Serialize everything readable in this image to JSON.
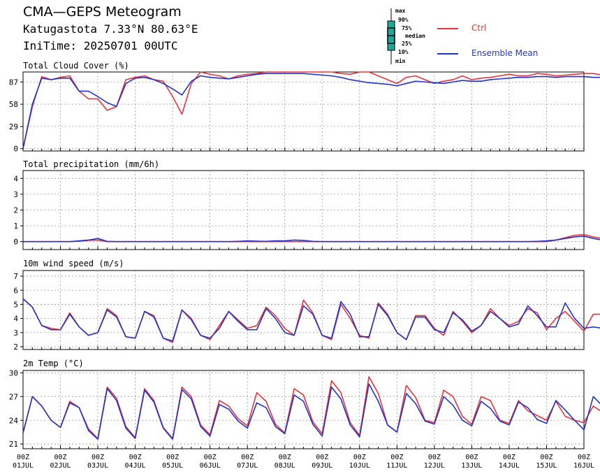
{
  "header": {
    "title": "CMA—GEPS Meteogram",
    "location": "Katugastota 7.33°N 80.63°E",
    "init_time": "IniTime: 20250701 00UTC"
  },
  "legend": {
    "box_key": [
      "max",
      "90%",
      "75%",
      "median",
      "25%",
      "10%",
      "min"
    ],
    "ctrl_label": "Ctrl",
    "mean_label": "Ensemble Mean",
    "colors": {
      "ctrl": "#e8353a",
      "mean": "#2233cc",
      "box": "#1fa89a"
    }
  },
  "x_axis": {
    "hours": [
      "00Z",
      "00Z",
      "00Z",
      "00Z",
      "00Z",
      "00Z",
      "00Z",
      "00Z",
      "00Z",
      "00Z",
      "00Z",
      "00Z",
      "00Z",
      "00Z",
      "00Z",
      "00Z"
    ],
    "dates": [
      "01JUL",
      "02JUL",
      "03JUL",
      "04JUL",
      "05JUL",
      "06JUL",
      "07JUL",
      "08JUL",
      "09JUL",
      "10JUL",
      "11JUL",
      "12JUL",
      "13JUL",
      "14JUL",
      "15JUL",
      "16JUL"
    ]
  },
  "chart_data": [
    {
      "type": "line",
      "title": "Total Cloud Cover (%)",
      "ylim": [
        -3,
        100
      ],
      "yticks": [
        "0",
        "29",
        "58",
        "87"
      ],
      "grid": true,
      "x_step_hours": 6,
      "series": [
        {
          "name": "Ctrl",
          "values": [
            0,
            55,
            94,
            90,
            93,
            95,
            75,
            65,
            65,
            50,
            55,
            90,
            93,
            95,
            90,
            88,
            68,
            45,
            85,
            100,
            97,
            95,
            91,
            95,
            97,
            98,
            100,
            100,
            100,
            100,
            100,
            100,
            100,
            100,
            98,
            97,
            100,
            100,
            95,
            90,
            85,
            93,
            95,
            90,
            85,
            88,
            90,
            95,
            90,
            92,
            93,
            95,
            97,
            95,
            95,
            98,
            97,
            95,
            96,
            97,
            98,
            98,
            96,
            95,
            95,
            93
          ]
        },
        {
          "name": "Ensemble Mean",
          "values": [
            0,
            58,
            92,
            90,
            92,
            92,
            75,
            75,
            68,
            60,
            55,
            85,
            92,
            93,
            90,
            85,
            78,
            70,
            88,
            95,
            93,
            92,
            91,
            93,
            95,
            97,
            98,
            98,
            98,
            98,
            98,
            97,
            96,
            95,
            93,
            90,
            88,
            86,
            85,
            84,
            82,
            85,
            88,
            87,
            86,
            85,
            87,
            89,
            88,
            88,
            90,
            91,
            92,
            93,
            93,
            94,
            94,
            93,
            94,
            94,
            94,
            93,
            93,
            94,
            94,
            92
          ]
        }
      ]
    },
    {
      "type": "line",
      "title": "Total precipitation (mm/6h)",
      "ylim": [
        -0.5,
        4.5
      ],
      "yticks": [
        "0",
        "1",
        "2",
        "3",
        "4"
      ],
      "grid": true,
      "x_step_hours": 6,
      "series": [
        {
          "name": "Ctrl",
          "values": [
            0,
            0,
            0,
            0,
            0,
            0,
            0.02,
            0.08,
            0.1,
            0,
            0,
            0,
            0,
            0,
            0,
            0,
            0,
            0,
            0,
            0,
            0,
            0,
            0,
            0,
            0,
            0,
            0,
            0,
            0,
            0,
            0,
            0,
            0,
            0,
            0,
            0,
            0,
            0,
            0,
            0,
            0,
            0,
            0,
            0,
            0,
            0,
            0,
            0,
            0,
            0,
            0,
            0,
            0,
            0,
            0,
            0,
            0,
            0.1,
            0.25,
            0.4,
            0.45,
            0.3,
            0.2,
            0.1,
            0.05,
            0.02,
            0,
            0,
            0,
            0,
            0,
            0,
            0,
            0,
            0.1,
            0.05,
            0,
            0,
            0,
            0,
            0
          ]
        },
        {
          "name": "Ensemble Mean",
          "values": [
            0,
            0,
            0,
            0,
            0,
            0,
            0.05,
            0.1,
            0.2,
            0.02,
            0,
            0,
            0,
            0,
            0,
            0,
            0,
            0,
            0,
            0,
            0,
            0,
            0,
            0.02,
            0.05,
            0.03,
            0.02,
            0.05,
            0.05,
            0.1,
            0.08,
            0.02,
            0,
            0,
            0,
            0,
            0,
            0,
            0,
            0,
            0,
            0,
            0,
            0,
            0,
            0,
            0,
            0,
            0,
            0,
            0,
            0,
            0,
            0,
            0,
            0.02,
            0.05,
            0.1,
            0.2,
            0.3,
            0.35,
            0.2,
            0.1,
            0.15,
            0.2,
            0.25,
            0.2,
            0.15,
            0.2,
            0.2,
            0.25,
            0.25,
            0.3,
            0.3,
            0.2,
            0.25,
            0.3,
            0.35,
            0.3,
            0.25,
            0.2
          ]
        }
      ]
    },
    {
      "type": "line",
      "title": "10m wind speed (m/s)",
      "ylim": [
        1.8,
        7.4
      ],
      "yticks": [
        "2",
        "3",
        "4",
        "5",
        "6",
        "7"
      ],
      "grid": true,
      "x_step_hours": 6,
      "series": [
        {
          "name": "Ctrl",
          "values": [
            5.4,
            4.8,
            3.5,
            3.3,
            3.2,
            4.4,
            3.4,
            2.8,
            3.0,
            4.7,
            4.2,
            2.7,
            2.6,
            4.5,
            4.2,
            2.6,
            2.3,
            4.6,
            4.0,
            2.8,
            2.5,
            3.5,
            4.5,
            3.9,
            3.3,
            3.5,
            4.8,
            4.2,
            3.3,
            2.8,
            5.3,
            4.4,
            2.8,
            2.5,
            5.0,
            4.0,
            2.8,
            2.6,
            5.1,
            4.3,
            3.0,
            2.5,
            4.2,
            4.2,
            3.3,
            2.8,
            4.5,
            3.8,
            3.0,
            3.5,
            4.7,
            4.0,
            3.5,
            3.8,
            4.7,
            4.4,
            3.2,
            4.0,
            4.5,
            3.8,
            3.1,
            4.3,
            4.3,
            3.5,
            3.0,
            4.5,
            4.0,
            3.4,
            3.6,
            4.0,
            4.2
          ]
        },
        {
          "name": "Ensemble Mean",
          "values": [
            5.4,
            4.8,
            3.5,
            3.2,
            3.2,
            4.3,
            3.4,
            2.8,
            3.0,
            4.6,
            4.1,
            2.7,
            2.6,
            4.5,
            4.1,
            2.6,
            2.4,
            4.6,
            3.9,
            2.8,
            2.6,
            3.3,
            4.5,
            3.8,
            3.2,
            3.2,
            4.7,
            4.0,
            3.0,
            2.8,
            4.9,
            4.3,
            2.8,
            2.6,
            5.2,
            4.3,
            2.7,
            2.7,
            5.0,
            4.2,
            3.0,
            2.5,
            4.1,
            4.1,
            3.2,
            3.0,
            4.4,
            3.9,
            3.1,
            3.5,
            4.5,
            4.0,
            3.4,
            3.6,
            4.9,
            4.2,
            3.4,
            3.4,
            5.1,
            4.0,
            3.3,
            3.4,
            3.3
          ]
        }
      ]
    },
    {
      "type": "line",
      "title": "2m Temp (°C)",
      "ylim": [
        20.4,
        30.3
      ],
      "yticks": [
        "21",
        "24",
        "27",
        "30"
      ],
      "grid": true,
      "x_step_hours": 6,
      "series": [
        {
          "name": "Ctrl",
          "values": [
            22.4,
            27.0,
            25.8,
            24.0,
            23.1,
            26.4,
            25.6,
            22.9,
            21.7,
            28.2,
            26.8,
            23.2,
            21.8,
            28.0,
            26.5,
            23.1,
            21.7,
            28.2,
            27.0,
            23.4,
            22.2,
            26.5,
            25.8,
            24.2,
            23.3,
            27.5,
            26.4,
            23.5,
            22.4,
            28.0,
            27.2,
            23.8,
            22.3,
            29.0,
            27.5,
            23.7,
            22.1,
            29.5,
            27.4,
            23.4,
            22.5,
            28.4,
            26.9,
            24.0,
            23.7,
            27.8,
            27.0,
            24.5,
            23.5,
            27.0,
            26.5,
            24.0,
            23.6,
            26.5,
            25.2,
            24.6,
            24.0,
            26.4,
            24.5,
            24.0,
            23.7,
            25.8,
            25.0,
            24.0,
            23.4
          ]
        },
        {
          "name": "Ensemble Mean",
          "values": [
            22.4,
            27.0,
            25.8,
            24.0,
            23.1,
            26.2,
            25.6,
            22.7,
            21.6,
            28.0,
            26.5,
            23.0,
            21.7,
            27.8,
            26.3,
            23.0,
            21.6,
            27.9,
            26.7,
            23.2,
            22.0,
            26.0,
            25.4,
            23.9,
            23.0,
            26.2,
            25.6,
            23.2,
            22.3,
            27.2,
            26.4,
            23.5,
            22.0,
            28.2,
            26.7,
            23.4,
            21.9,
            28.6,
            26.4,
            23.4,
            22.5,
            27.4,
            26.1,
            23.9,
            23.5,
            27.0,
            25.9,
            24.0,
            23.3,
            26.4,
            25.5,
            23.9,
            23.4,
            26.3,
            25.6,
            24.1,
            23.6,
            26.5,
            25.3,
            24.0,
            22.8,
            27.0,
            25.8,
            23.8,
            23.0
          ]
        }
      ]
    }
  ]
}
